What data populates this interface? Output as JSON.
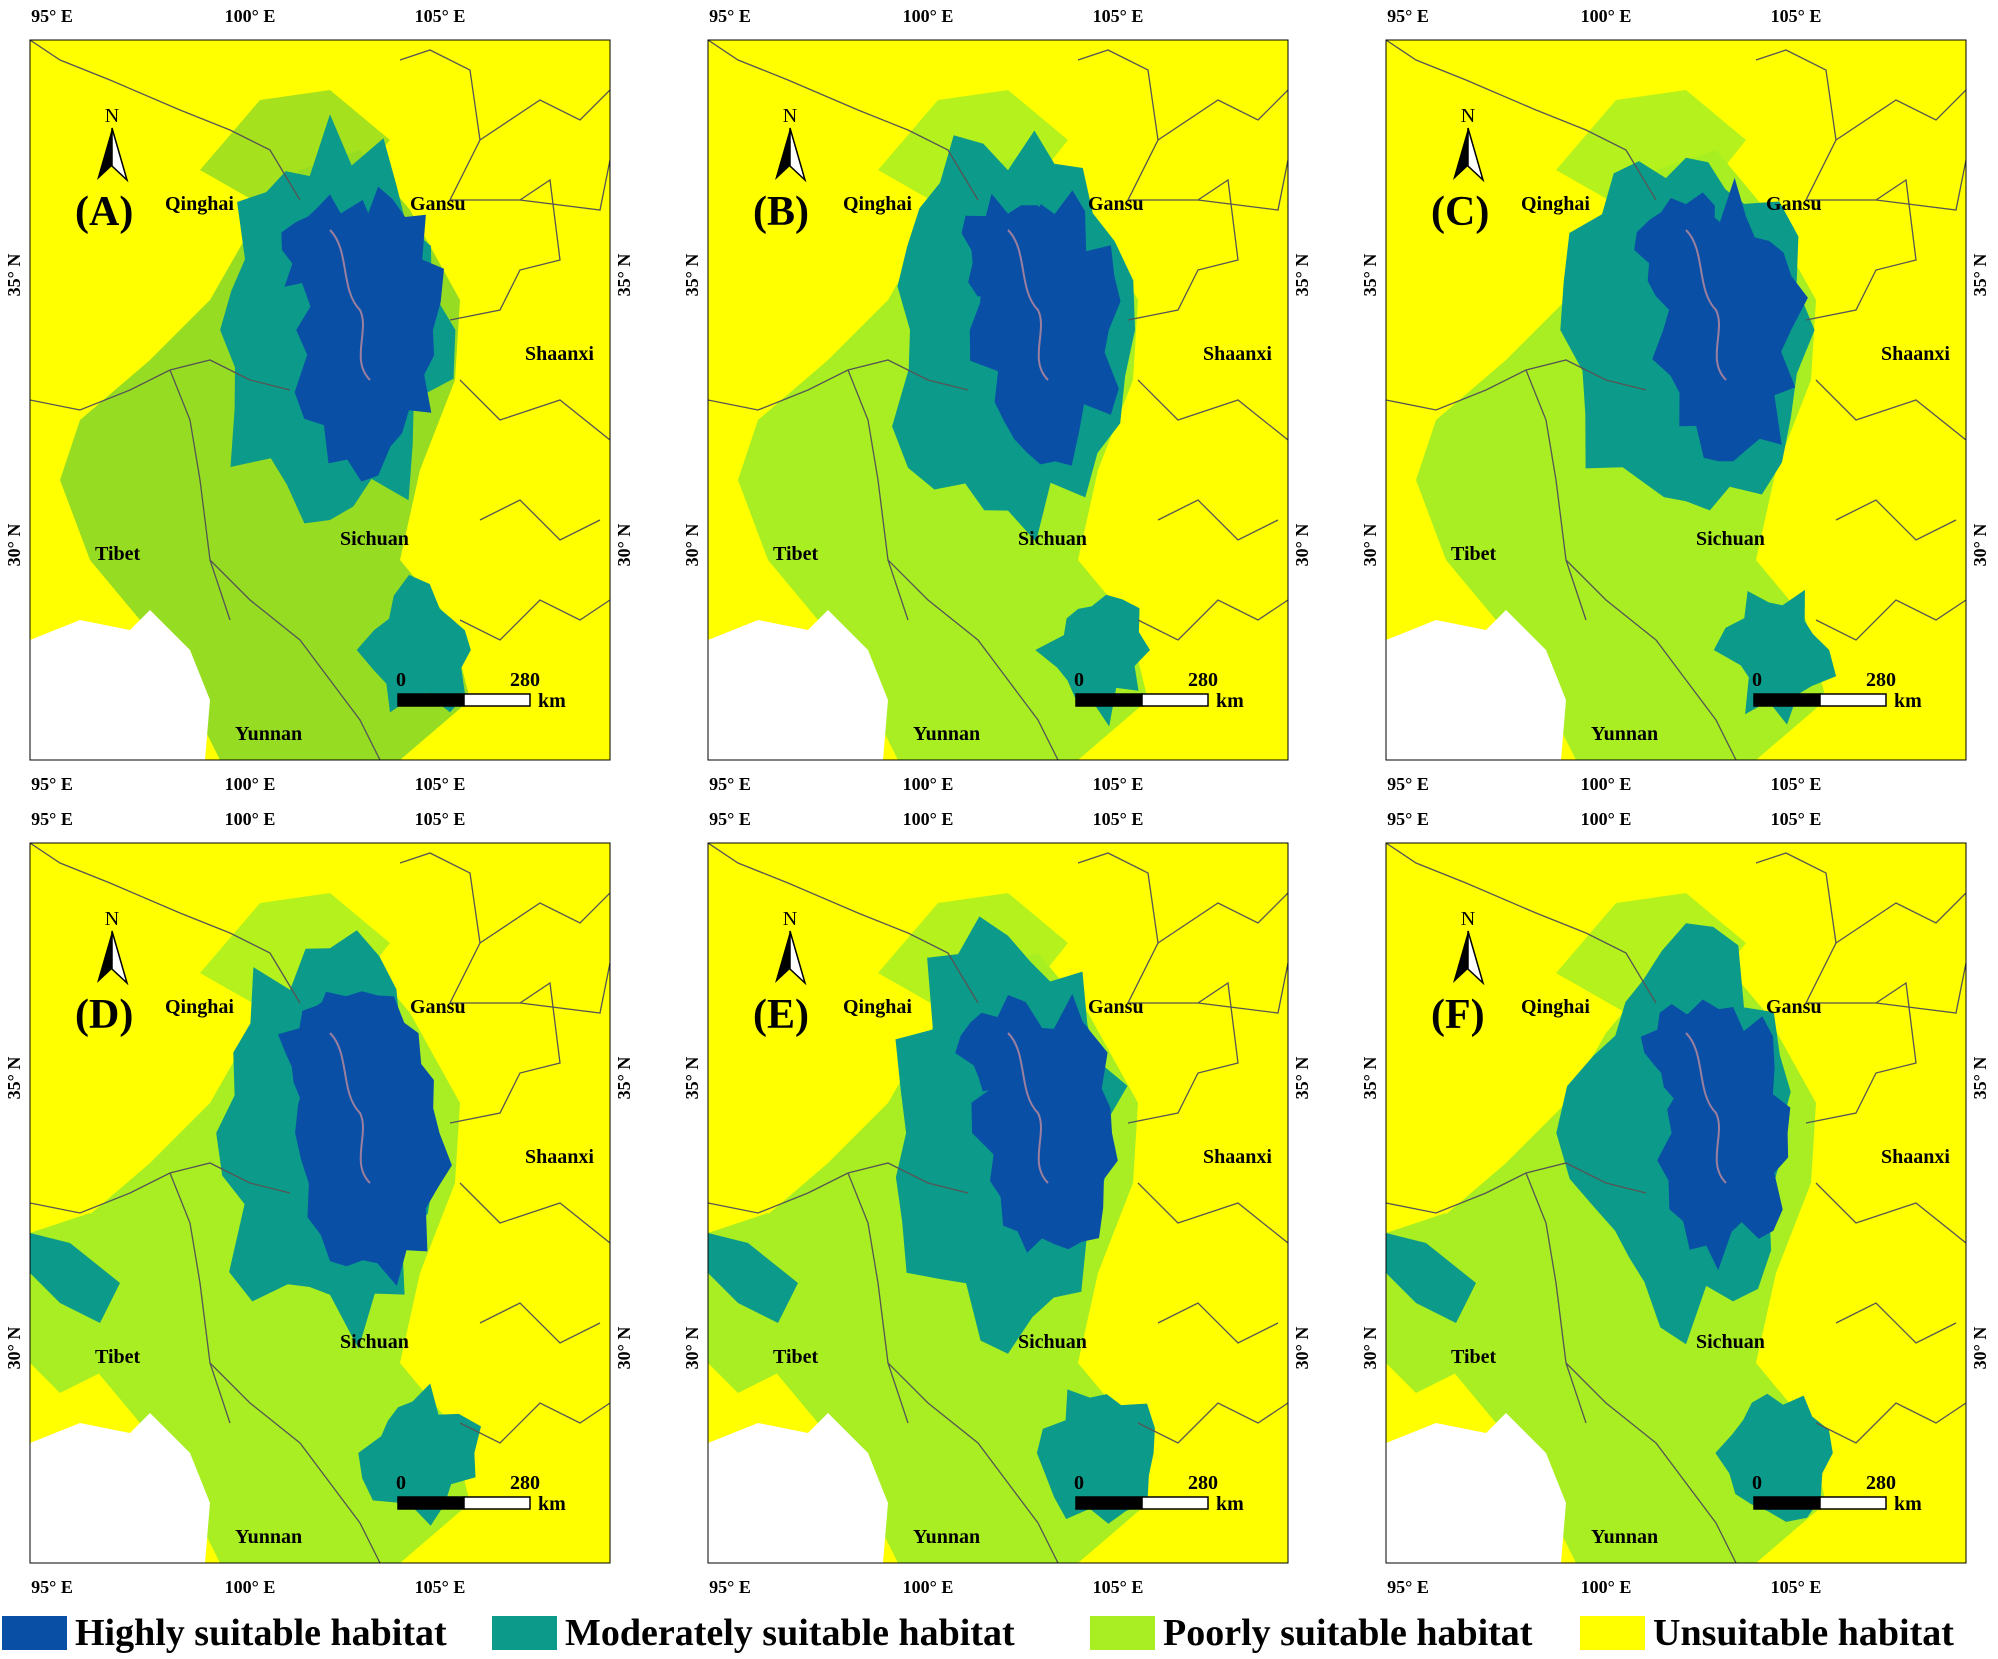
{
  "colors": {
    "highly": "#0a4fa6",
    "moderately": "#0c9a8a",
    "poorly": "#a8ee22",
    "unsuitable": "#ffff00",
    "outside": "#ffffff",
    "border": "#555555",
    "river": "#9a7f9e"
  },
  "ticks": {
    "lon": [
      "95° E",
      "100° E",
      "105° E"
    ],
    "lat": [
      "35° N",
      "30° N"
    ]
  },
  "regions": {
    "qinghai": "Qinghai",
    "gansu": "Gansu",
    "shaanxi": "Shaanxi",
    "sichuan": "Sichuan",
    "tibet": "Tibet",
    "yunnan": "Yunnan"
  },
  "north_label": "N",
  "scale": {
    "start": "0",
    "end": "280",
    "unit": "km"
  },
  "panels": [
    {
      "letter": "(A)",
      "icon": "north-arrow-icon"
    },
    {
      "letter": "(B)",
      "icon": "north-arrow-icon"
    },
    {
      "letter": "(C)",
      "icon": "north-arrow-icon"
    },
    {
      "letter": "(D)",
      "icon": "north-arrow-icon"
    },
    {
      "letter": "(E)",
      "icon": "north-arrow-icon"
    },
    {
      "letter": "(F)",
      "icon": "north-arrow-icon"
    }
  ],
  "legend": [
    {
      "label": "Highly suitable habitat",
      "color": "#0a4fa6"
    },
    {
      "label": "Moderately suitable habitat",
      "color": "#0c9a8a"
    },
    {
      "label": "Poorly suitable habitat",
      "color": "#a8ee22"
    },
    {
      "label": "Unsuitable habitat",
      "color": "#ffff00"
    }
  ]
}
